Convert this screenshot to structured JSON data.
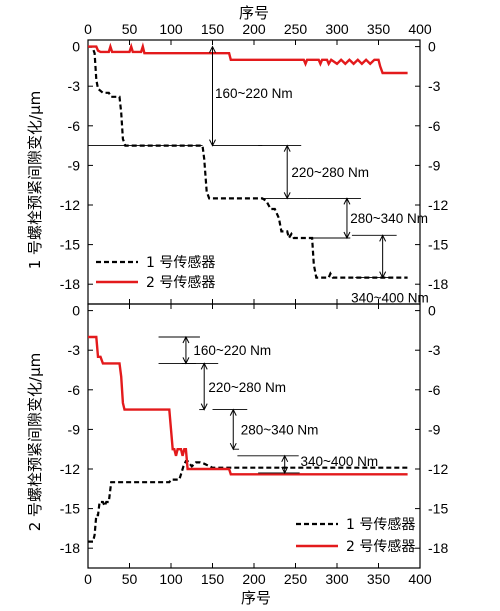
{
  "chart_data": [
    {
      "type": "line",
      "panel": "top",
      "xlabel": "序号",
      "ylabel": "1 号螺栓预紧间隙变化/μm",
      "xlim": [
        0,
        400
      ],
      "ylim": [
        -19.5,
        0.5
      ],
      "xticks": [
        0,
        50,
        100,
        150,
        200,
        250,
        300,
        350,
        400
      ],
      "yticks": [
        0,
        -3,
        -6,
        -9,
        -12,
        -15,
        -18
      ],
      "legend_position": "bottom-left",
      "series": [
        {
          "name": "1 号传感器",
          "color": "#000000",
          "dash": "dashed",
          "points": [
            [
              0,
              0
            ],
            [
              5,
              0
            ],
            [
              8,
              -0.5
            ],
            [
              10,
              -2.5
            ],
            [
              12,
              -3.2
            ],
            [
              18,
              -3.5
            ],
            [
              25,
              -3.5
            ],
            [
              28,
              -3.8
            ],
            [
              38,
              -3.8
            ],
            [
              40,
              -5
            ],
            [
              42,
              -7
            ],
            [
              45,
              -7.5
            ],
            [
              60,
              -7.5
            ],
            [
              100,
              -7.5
            ],
            [
              138,
              -7.5
            ],
            [
              140,
              -8.5
            ],
            [
              143,
              -11
            ],
            [
              146,
              -11.5
            ],
            [
              170,
              -11.5
            ],
            [
              210,
              -11.5
            ],
            [
              215,
              -11.7
            ],
            [
              220,
              -12.3
            ],
            [
              225,
              -12.3
            ],
            [
              230,
              -13
            ],
            [
              233,
              -14
            ],
            [
              240,
              -14
            ],
            [
              242,
              -14.5
            ],
            [
              245,
              -14.2
            ],
            [
              248,
              -14.5
            ],
            [
              255,
              -14.5
            ],
            [
              270,
              -14.5
            ],
            [
              272,
              -16.5
            ],
            [
              275,
              -17.5
            ],
            [
              290,
              -17.5
            ],
            [
              292,
              -17.2
            ],
            [
              295,
              -17.5
            ],
            [
              385,
              -17.5
            ]
          ]
        },
        {
          "name": "2 号传感器",
          "color": "#e31a1c",
          "dash": "solid",
          "points": [
            [
              0,
              0
            ],
            [
              10,
              0
            ],
            [
              12,
              -0.3
            ],
            [
              15,
              -0.4
            ],
            [
              25,
              -0.4
            ],
            [
              27,
              0
            ],
            [
              29,
              -0.4
            ],
            [
              50,
              -0.4
            ],
            [
              52,
              0
            ],
            [
              54,
              -0.4
            ],
            [
              64,
              -0.4
            ],
            [
              66,
              0
            ],
            [
              68,
              -0.5
            ],
            [
              100,
              -0.5
            ],
            [
              140,
              -0.5
            ],
            [
              170,
              -0.5
            ],
            [
              172,
              -1
            ],
            [
              260,
              -1
            ],
            [
              262,
              -1.3
            ],
            [
              264,
              -1
            ],
            [
              278,
              -1
            ],
            [
              280,
              -1.3
            ],
            [
              282,
              -1
            ],
            [
              288,
              -1
            ],
            [
              290,
              -1.3
            ],
            [
              293,
              -1
            ],
            [
              300,
              -1.3
            ],
            [
              305,
              -1
            ],
            [
              310,
              -1.3
            ],
            [
              315,
              -1
            ],
            [
              320,
              -1.3
            ],
            [
              325,
              -1
            ],
            [
              330,
              -1.3
            ],
            [
              335,
              -1
            ],
            [
              340,
              -1.3
            ],
            [
              345,
              -1
            ],
            [
              350,
              -1
            ],
            [
              352,
              -1.5
            ],
            [
              355,
              -2
            ],
            [
              385,
              -2
            ]
          ]
        }
      ],
      "annotations": [
        {
          "text": "160~220 Nm"
        },
        {
          "text": "220~280 Nm"
        },
        {
          "text": "280~340 Nm"
        },
        {
          "text": "340~400 Nm"
        }
      ]
    },
    {
      "type": "line",
      "panel": "bottom",
      "xlabel": "序号",
      "ylabel": "2 号螺栓预紧间隙变化/μm",
      "xlim": [
        0,
        400
      ],
      "ylim": [
        -19.5,
        0.5
      ],
      "xticks": [
        0,
        50,
        100,
        150,
        200,
        250,
        300,
        350,
        400
      ],
      "yticks": [
        0,
        -3,
        -6,
        -9,
        -12,
        -15,
        -18
      ],
      "legend_position": "bottom-right",
      "series": [
        {
          "name": "1 号传感器",
          "color": "#000000",
          "dash": "dashed",
          "points": [
            [
              0,
              -17.5
            ],
            [
              6,
              -17.5
            ],
            [
              8,
              -17
            ],
            [
              10,
              -15.5
            ],
            [
              12,
              -15.5
            ],
            [
              14,
              -14.5
            ],
            [
              18,
              -14.5
            ],
            [
              20,
              -14.8
            ],
            [
              22,
              -14.5
            ],
            [
              25,
              -14.5
            ],
            [
              28,
              -13
            ],
            [
              30,
              -13
            ],
            [
              60,
              -13
            ],
            [
              98,
              -13
            ],
            [
              100,
              -12.8
            ],
            [
              110,
              -12.8
            ],
            [
              112,
              -12.4
            ],
            [
              115,
              -11.8
            ],
            [
              118,
              -11.4
            ],
            [
              120,
              -11.4
            ],
            [
              125,
              -11.8
            ],
            [
              130,
              -11.5
            ],
            [
              135,
              -11.5
            ],
            [
              140,
              -11.6
            ],
            [
              150,
              -11.9
            ],
            [
              170,
              -11.9
            ],
            [
              385,
              -11.9
            ]
          ]
        },
        {
          "name": "2 号传感器",
          "color": "#e31a1c",
          "dash": "solid",
          "points": [
            [
              0,
              -2
            ],
            [
              10,
              -2
            ],
            [
              12,
              -3.5
            ],
            [
              15,
              -3.5
            ],
            [
              18,
              -4
            ],
            [
              38,
              -4
            ],
            [
              40,
              -5
            ],
            [
              42,
              -7
            ],
            [
              44,
              -7.5
            ],
            [
              60,
              -7.5
            ],
            [
              98,
              -7.5
            ],
            [
              100,
              -9
            ],
            [
              102,
              -10.5
            ],
            [
              104,
              -10.5
            ],
            [
              106,
              -11
            ],
            [
              108,
              -10.5
            ],
            [
              112,
              -10.5
            ],
            [
              114,
              -11
            ],
            [
              116,
              -10.5
            ],
            [
              118,
              -10.5
            ],
            [
              120,
              -12
            ],
            [
              122,
              -12
            ],
            [
              140,
              -12
            ],
            [
              142,
              -12
            ],
            [
              145,
              -12
            ],
            [
              170,
              -12
            ],
            [
              172,
              -12.4
            ],
            [
              385,
              -12.4
            ]
          ]
        }
      ],
      "annotations": [
        {
          "text": "160~220 Nm"
        },
        {
          "text": "220~280 Nm"
        },
        {
          "text": "280~340 Nm"
        },
        {
          "text": "340~400 Nm"
        }
      ]
    }
  ]
}
